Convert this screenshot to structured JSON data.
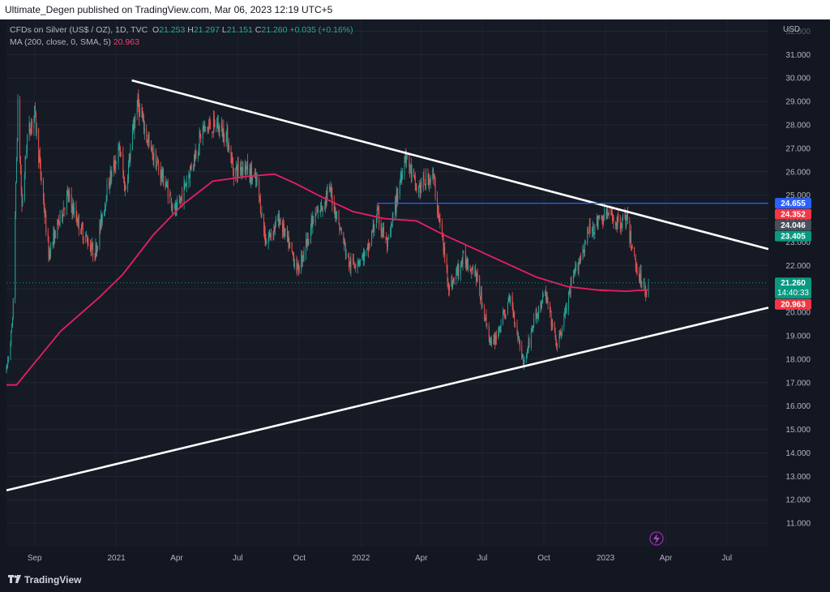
{
  "header": {
    "text": "Ultimate_Degen published on TradingView.com, Mar 06, 2023 12:19 UTC+5"
  },
  "legend": {
    "symbol": "CFDs on Silver (US$ / OZ), 1D, TVC",
    "o_label": "O",
    "o": "21.253",
    "h_label": "H",
    "h": "21.297",
    "l_label": "L",
    "l": "21.151",
    "c_label": "C",
    "c": "21.260",
    "change": "+0.035 (+0.16%)",
    "ma_label": "MA (200, close, 0, SMA, 5)",
    "ma_value": "20.963"
  },
  "branding": {
    "name": "TradingView"
  },
  "icons": [
    "lightning-icon",
    "tradingview-logo-icon"
  ],
  "colors": {
    "background": "#161a25",
    "up": "#26a69a",
    "down": "#ef5350",
    "ma": "#e91e63",
    "trendline": "#ffffff",
    "horizontal_line": "#2962ff"
  },
  "chart_data": {
    "type": "candlestick",
    "currency": "USD",
    "y_ticks": [
      "11.000",
      "12.000",
      "13.000",
      "14.000",
      "15.000",
      "16.000",
      "17.000",
      "18.000",
      "19.000",
      "20.000",
      "21.000",
      "22.000",
      "23.000",
      "24.000",
      "25.000",
      "26.000",
      "27.000",
      "28.000",
      "29.000",
      "30.000",
      "31.000",
      "32.000"
    ],
    "ylim": [
      10.0,
      32.5
    ],
    "x_ticks": [
      "Sep",
      "2021",
      "Apr",
      "Jul",
      "Oct",
      "2022",
      "Apr",
      "Jul",
      "Oct",
      "2023",
      "Apr",
      "Jul"
    ],
    "xlim": [
      "2020-07-21",
      "2023-09-01"
    ],
    "price_path": [
      [
        "2020-07-21",
        17.5
      ],
      [
        "2020-07-30",
        19.5
      ],
      [
        "2020-08-07",
        28.8
      ],
      [
        "2020-08-13",
        24.5
      ],
      [
        "2020-08-21",
        27.5
      ],
      [
        "2020-09-01",
        28.5
      ],
      [
        "2020-09-22",
        22.5
      ],
      [
        "2020-10-20",
        25.0
      ],
      [
        "2020-11-10",
        23.5
      ],
      [
        "2020-11-30",
        22.5
      ],
      [
        "2020-12-20",
        25.5
      ],
      [
        "2021-01-06",
        27.0
      ],
      [
        "2021-01-14",
        25.2
      ],
      [
        "2021-02-01",
        29.0
      ],
      [
        "2021-02-20",
        27.0
      ],
      [
        "2021-03-15",
        25.5
      ],
      [
        "2021-03-31",
        24.2
      ],
      [
        "2021-04-20",
        26.0
      ],
      [
        "2021-05-10",
        27.8
      ],
      [
        "2021-05-31",
        28.0
      ],
      [
        "2021-06-15",
        27.5
      ],
      [
        "2021-06-25",
        26.0
      ],
      [
        "2021-07-10",
        26.3
      ],
      [
        "2021-07-30",
        25.5
      ],
      [
        "2021-08-12",
        23.0
      ],
      [
        "2021-09-01",
        24.0
      ],
      [
        "2021-09-29",
        21.8
      ],
      [
        "2021-10-20",
        23.8
      ],
      [
        "2021-11-16",
        25.2
      ],
      [
        "2021-12-15",
        22.0
      ],
      [
        "2022-01-10",
        22.5
      ],
      [
        "2022-01-25",
        24.2
      ],
      [
        "2022-02-10",
        22.8
      ],
      [
        "2022-03-08",
        26.8
      ],
      [
        "2022-03-25",
        25.2
      ],
      [
        "2022-04-18",
        25.9
      ],
      [
        "2022-05-13",
        21.0
      ],
      [
        "2022-06-03",
        22.3
      ],
      [
        "2022-06-20",
        21.8
      ],
      [
        "2022-07-15",
        18.5
      ],
      [
        "2022-08-12",
        20.6
      ],
      [
        "2022-09-01",
        17.8
      ],
      [
        "2022-09-15",
        19.5
      ],
      [
        "2022-10-03",
        20.8
      ],
      [
        "2022-10-21",
        18.5
      ],
      [
        "2022-11-14",
        21.5
      ],
      [
        "2022-12-08",
        23.5
      ],
      [
        "2023-01-03",
        24.2
      ],
      [
        "2023-01-20",
        23.8
      ],
      [
        "2023-02-01",
        24.0
      ],
      [
        "2023-02-15",
        22.0
      ],
      [
        "2023-03-01",
        21.0
      ],
      [
        "2023-03-03",
        20.9
      ],
      [
        "2023-03-06",
        21.26
      ]
    ],
    "moving_average": {
      "name": "MA (200, close, 0, SMA, 5)",
      "points": [
        [
          "2020-07-21",
          16.9
        ],
        [
          "2020-08-05",
          16.9
        ],
        [
          "2020-08-25",
          17.6
        ],
        [
          "2020-10-10",
          19.2
        ],
        [
          "2020-12-05",
          20.6
        ],
        [
          "2021-01-10",
          21.6
        ],
        [
          "2021-02-25",
          23.3
        ],
        [
          "2021-04-10",
          24.6
        ],
        [
          "2021-05-25",
          25.6
        ],
        [
          "2021-07-15",
          25.8
        ],
        [
          "2021-08-25",
          25.9
        ],
        [
          "2021-09-25",
          25.5
        ],
        [
          "2021-11-05",
          24.9
        ],
        [
          "2021-12-20",
          24.3
        ],
        [
          "2022-02-05",
          24.0
        ],
        [
          "2022-03-25",
          23.9
        ],
        [
          "2022-05-05",
          23.3
        ],
        [
          "2022-06-20",
          22.7
        ],
        [
          "2022-08-05",
          22.1
        ],
        [
          "2022-09-20",
          21.5
        ],
        [
          "2022-11-05",
          21.1
        ],
        [
          "2022-12-20",
          20.95
        ],
        [
          "2023-02-01",
          20.9
        ],
        [
          "2023-03-06",
          20.96
        ]
      ]
    },
    "drawings": {
      "descending_trendline": [
        [
          "2021-01-24",
          29.9
        ],
        [
          "2023-09-01",
          22.7
        ]
      ],
      "ascending_trendline": [
        [
          "2020-07-21",
          12.4
        ],
        [
          "2023-09-01",
          20.2
        ]
      ],
      "horizontal_line": {
        "from": "2022-01-25",
        "y": 24.655
      }
    },
    "price_labels": [
      {
        "value": "24.655",
        "bg": "#2962ff",
        "y": 24.655
      },
      {
        "value": "24.352",
        "bg": "#f23645",
        "y": 24.352
      },
      {
        "value": "24.046",
        "bg": "#4a4e59",
        "y": 24.046
      },
      {
        "value": "23.405",
        "bg": "#089981",
        "y": 23.405
      },
      {
        "value": "21.260",
        "bg": "#089981",
        "y": 21.26,
        "sub": "14:40:33"
      },
      {
        "value": "20.963",
        "bg": "#f23645",
        "y": 20.963
      }
    ]
  }
}
